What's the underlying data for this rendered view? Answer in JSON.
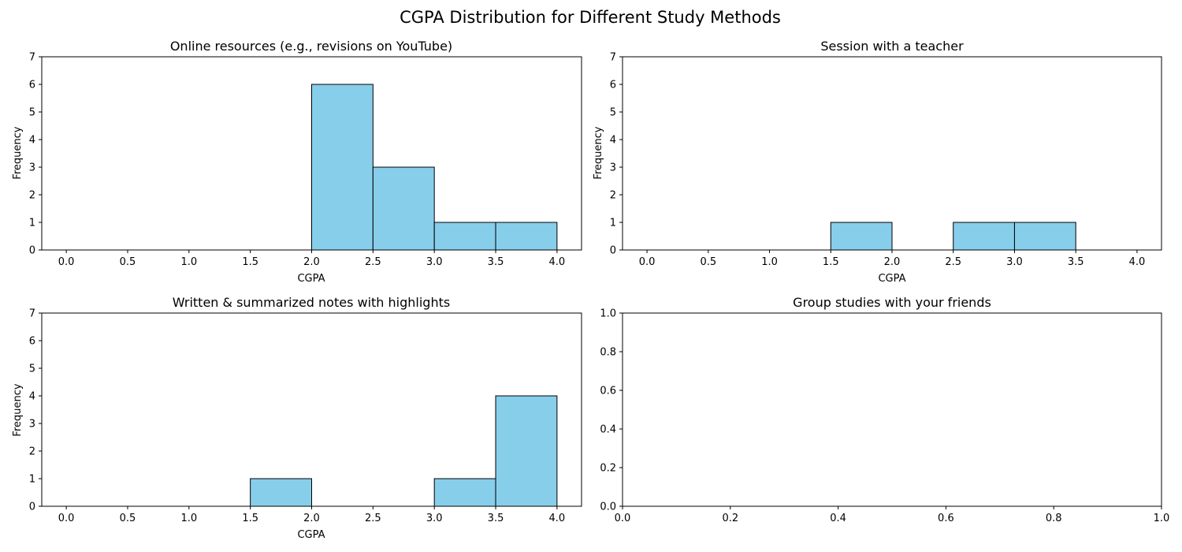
{
  "figure": {
    "title": "CGPA Distribution for Different Study Methods",
    "colors": {
      "bar_fill": "#87ceeb",
      "bar_edge": "#000000",
      "axis": "#000000",
      "background": "#ffffff"
    }
  },
  "chart_data": [
    {
      "type": "bar",
      "title": "Online resources (e.g., revisions on YouTube)",
      "xlabel": "CGPA",
      "ylabel": "Frequency",
      "xlim": [
        -0.2,
        4.2
      ],
      "ylim": [
        0,
        7
      ],
      "xticks": [
        "0.0",
        "0.5",
        "1.0",
        "1.5",
        "2.0",
        "2.5",
        "3.0",
        "3.5",
        "4.0"
      ],
      "yticks": [
        "0",
        "1",
        "2",
        "3",
        "4",
        "5",
        "6",
        "7"
      ],
      "bin_edges": [
        0.0,
        0.5,
        1.0,
        1.5,
        2.0,
        2.5,
        3.0,
        3.5,
        4.0
      ],
      "values": [
        0,
        0,
        0,
        0,
        6,
        3,
        1,
        1
      ],
      "grid": false
    },
    {
      "type": "bar",
      "title": "Session with a teacher",
      "xlabel": "CGPA",
      "ylabel": "Frequency",
      "xlim": [
        -0.2,
        4.2
      ],
      "ylim": [
        0,
        7
      ],
      "xticks": [
        "0.0",
        "0.5",
        "1.0",
        "1.5",
        "2.0",
        "2.5",
        "3.0",
        "3.5",
        "4.0"
      ],
      "yticks": [
        "0",
        "1",
        "2",
        "3",
        "4",
        "5",
        "6",
        "7"
      ],
      "bin_edges": [
        0.0,
        0.5,
        1.0,
        1.5,
        2.0,
        2.5,
        3.0,
        3.5,
        4.0
      ],
      "values": [
        0,
        0,
        0,
        1,
        0,
        1,
        1,
        0
      ],
      "grid": false
    },
    {
      "type": "bar",
      "title": "Written & summarized notes with highlights",
      "xlabel": "CGPA",
      "ylabel": "Frequency",
      "xlim": [
        -0.2,
        4.2
      ],
      "ylim": [
        0,
        7
      ],
      "xticks": [
        "0.0",
        "0.5",
        "1.0",
        "1.5",
        "2.0",
        "2.5",
        "3.0",
        "3.5",
        "4.0"
      ],
      "yticks": [
        "0",
        "1",
        "2",
        "3",
        "4",
        "5",
        "6",
        "7"
      ],
      "bin_edges": [
        0.0,
        0.5,
        1.0,
        1.5,
        2.0,
        2.5,
        3.0,
        3.5,
        4.0
      ],
      "values": [
        0,
        0,
        0,
        1,
        0,
        0,
        1,
        4
      ],
      "grid": false
    },
    {
      "type": "bar",
      "title": "Group studies with your friends",
      "xlabel": "",
      "ylabel": "",
      "xlim": [
        0,
        1
      ],
      "ylim": [
        0,
        1
      ],
      "xticks": [
        "0.0",
        "0.2",
        "0.4",
        "0.6",
        "0.8",
        "1.0"
      ],
      "yticks": [
        "0.0",
        "0.2",
        "0.4",
        "0.6",
        "0.8",
        "1.0"
      ],
      "bin_edges": [],
      "values": [],
      "grid": false
    }
  ]
}
